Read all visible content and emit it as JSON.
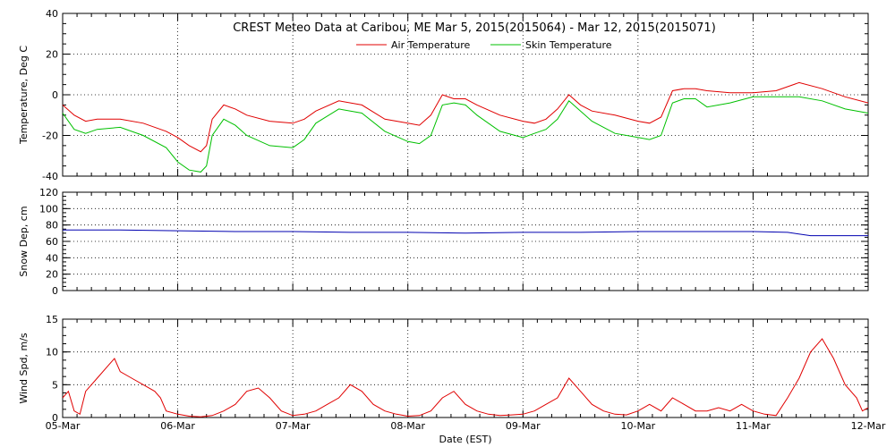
{
  "title": "CREST Meteo Data at Caribou, ME   Mar  5, 2015(2015064) - Mar 12, 2015(2015071)",
  "xlabel": "Date (EST)",
  "x_ticks": [
    "05-Mar",
    "06-Mar",
    "07-Mar",
    "08-Mar",
    "09-Mar",
    "10-Mar",
    "11-Mar",
    "12-Mar"
  ],
  "colors": {
    "air": "#e00000",
    "skin": "#00c000",
    "snow": "#0000b0",
    "wind": "#e00000"
  },
  "chart_data": [
    {
      "type": "line",
      "ylabel": "Temperature, Deg C",
      "ylim": [
        -40,
        40
      ],
      "y_ticks": [
        "-40",
        "-20",
        "0",
        "20",
        "40"
      ],
      "x_unit": "days since 05-Mar 00:00",
      "series": [
        {
          "name": "Air Temperature",
          "color": "#e00000",
          "x": [
            0,
            0.1,
            0.2,
            0.3,
            0.5,
            0.7,
            0.9,
            1.0,
            1.1,
            1.2,
            1.25,
            1.3,
            1.4,
            1.5,
            1.6,
            1.8,
            2.0,
            2.1,
            2.2,
            2.4,
            2.6,
            2.8,
            3.0,
            3.1,
            3.2,
            3.3,
            3.4,
            3.5,
            3.6,
            3.8,
            4.0,
            4.1,
            4.2,
            4.3,
            4.4,
            4.5,
            4.6,
            4.8,
            5.0,
            5.1,
            5.2,
            5.3,
            5.4,
            5.5,
            5.6,
            5.8,
            6.0,
            6.2,
            6.4,
            6.6,
            6.8,
            7.0
          ],
          "y": [
            -5,
            -10,
            -13,
            -12,
            -12,
            -14,
            -18,
            -21,
            -25,
            -28,
            -25,
            -12,
            -5,
            -7,
            -10,
            -13,
            -14,
            -12,
            -8,
            -3,
            -5,
            -12,
            -14,
            -15,
            -10,
            0,
            -2,
            -2,
            -5,
            -10,
            -13,
            -14,
            -12,
            -7,
            0,
            -5,
            -8,
            -10,
            -13,
            -14,
            -11,
            2,
            3,
            3,
            2,
            1,
            1,
            2,
            6,
            3,
            -1,
            -4
          ]
        },
        {
          "name": "Skin Temperature",
          "color": "#00c000",
          "x": [
            0,
            0.1,
            0.2,
            0.3,
            0.5,
            0.7,
            0.9,
            1.0,
            1.1,
            1.2,
            1.25,
            1.3,
            1.4,
            1.5,
            1.6,
            1.8,
            2.0,
            2.1,
            2.2,
            2.4,
            2.6,
            2.8,
            3.0,
            3.1,
            3.2,
            3.3,
            3.4,
            3.5,
            3.6,
            3.8,
            4.0,
            4.1,
            4.2,
            4.3,
            4.4,
            4.5,
            4.6,
            4.8,
            5.0,
            5.1,
            5.2,
            5.3,
            5.4,
            5.5,
            5.6,
            5.8,
            6.0,
            6.2,
            6.4,
            6.6,
            6.8,
            7.0
          ],
          "y": [
            -9,
            -17,
            -19,
            -17,
            -16,
            -20,
            -26,
            -33,
            -37,
            -38,
            -35,
            -20,
            -12,
            -15,
            -20,
            -25,
            -26,
            -22,
            -14,
            -7,
            -9,
            -18,
            -23,
            -24,
            -20,
            -5,
            -4,
            -5,
            -10,
            -18,
            -21,
            -19,
            -17,
            -12,
            -3,
            -8,
            -13,
            -19,
            -21,
            -22,
            -20,
            -4,
            -2,
            -2,
            -6,
            -4,
            -1,
            -1,
            -1,
            -3,
            -7,
            -9
          ]
        }
      ]
    },
    {
      "type": "line",
      "ylabel": "Snow Dep, cm",
      "ylim": [
        0,
        120
      ],
      "y_ticks": [
        "0",
        "20",
        "40",
        "60",
        "80",
        "100",
        "120"
      ],
      "x_unit": "days since 05-Mar 00:00",
      "series": [
        {
          "name": "Snow Depth",
          "color": "#0000b0",
          "x": [
            0,
            0.5,
            1.0,
            1.5,
            2.0,
            2.5,
            3.0,
            3.5,
            4.0,
            4.5,
            5.0,
            5.5,
            6.0,
            6.3,
            6.5,
            7.0
          ],
          "y": [
            74,
            74,
            73,
            72,
            72,
            71,
            71,
            70,
            71,
            71,
            72,
            72,
            72,
            71,
            67,
            67
          ]
        }
      ]
    },
    {
      "type": "line",
      "ylabel": "Wind Spd, m/s",
      "ylim": [
        0,
        15
      ],
      "y_ticks": [
        "0",
        "5",
        "10",
        "15"
      ],
      "x_unit": "days since 05-Mar 00:00",
      "series": [
        {
          "name": "Wind Speed",
          "color": "#e00000",
          "x": [
            0,
            0.05,
            0.1,
            0.15,
            0.2,
            0.3,
            0.4,
            0.45,
            0.5,
            0.6,
            0.7,
            0.8,
            0.85,
            0.9,
            1.0,
            1.1,
            1.2,
            1.3,
            1.4,
            1.5,
            1.6,
            1.7,
            1.8,
            1.9,
            2.0,
            2.1,
            2.2,
            2.3,
            2.4,
            2.5,
            2.6,
            2.7,
            2.8,
            2.9,
            3.0,
            3.1,
            3.2,
            3.3,
            3.4,
            3.5,
            3.6,
            3.7,
            3.8,
            3.9,
            4.0,
            4.1,
            4.2,
            4.3,
            4.4,
            4.5,
            4.6,
            4.7,
            4.8,
            4.9,
            5.0,
            5.1,
            5.2,
            5.3,
            5.4,
            5.5,
            5.6,
            5.7,
            5.8,
            5.9,
            6.0,
            6.1,
            6.2,
            6.3,
            6.4,
            6.5,
            6.6,
            6.7,
            6.8,
            6.9,
            6.95,
            7.0
          ],
          "y": [
            3,
            4,
            1,
            0.5,
            4,
            6,
            8,
            9,
            7,
            6,
            5,
            4,
            3,
            1,
            0.5,
            0.2,
            0.1,
            0.3,
            1,
            2,
            4,
            4.5,
            3,
            1,
            0.3,
            0.5,
            1,
            2,
            3,
            5,
            4,
            2,
            1,
            0.5,
            0.2,
            0.3,
            1,
            3,
            4,
            2,
            1,
            0.5,
            0.3,
            0.4,
            0.5,
            1,
            2,
            3,
            6,
            4,
            2,
            1,
            0.5,
            0.4,
            1,
            2,
            1,
            3,
            2,
            1,
            1,
            1.5,
            1,
            2,
            1,
            0.5,
            0.3,
            3,
            6,
            10,
            12,
            9,
            5,
            3,
            1,
            1.5
          ]
        }
      ]
    }
  ],
  "panel_labels": {
    "legend_air": "Air Temperature",
    "legend_skin": "Skin Temperature"
  }
}
